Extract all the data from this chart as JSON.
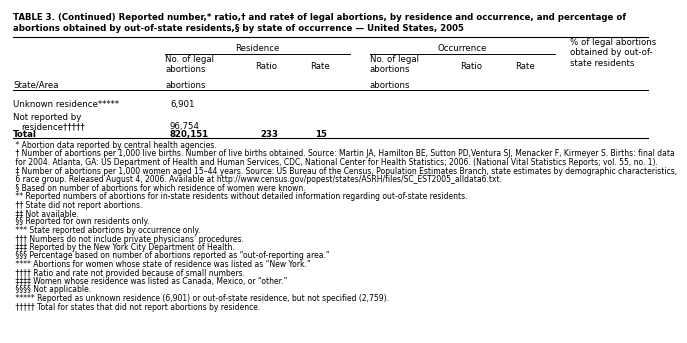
{
  "title_line1": "TABLE 3. (Continued) Reported number,* ratio,† and rate‡ of legal abortions, by residence and occurrence, and percentage of",
  "title_line2": "abortions obtained by out-of-state residents,§ by state of occurrence — United States, 2005",
  "footnotes": [
    " * Abortion data reported by central health agencies.",
    " † Number of abortions per 1,000 live births. Number of live births obtained. Source: Martin JA, Hamilton BE, Sutton PD,Ventura SJ, Menacker F, Kirmeyer S. Births: final data",
    " for 2004. Atlanta, GA: US Department of Health and Human Services, CDC, National Center for Health Statistics; 2006. (National Vital Statistics Reports; vol. 55, no. 1).",
    " ‡ Number of abortions per 1,000 women aged 15–44 years. Source: US Bureau of the Census, Population Estimates Branch, state estimates by demographic characteristics,",
    " 6 race group. Released August 4, 2006. Available at http://www.census.gov/popest/states/ASRH/files/SC_EST2005_alldata6.txt.",
    " § Based on number of abortions for which residence of women were known.",
    " ** Reported numbers of abortions for in-state residents without detailed information regarding out-of-state residents.",
    " †† State did not report abortions.",
    " ‡‡ Not available.",
    " §§ Reported for own residents only.",
    " *** State reported abortions by occurrence only.",
    " ††† Numbers do not include private physicians’ procedures.",
    " ‡‡‡ Reported by the New York City Department of Health.",
    " §§§ Percentage based on number of abortions reported as “out-of-reporting area.”",
    " **** Abortions for women whose state of residence was listed as “New York.”",
    " †††† Ratio and rate not provided because of small numbers.",
    " ‡‡‡‡ Women whose residence was listed as Canada, Mexico, or “other.”",
    " §§§§ Not applicable.",
    " ***** Reported as unknown residence (6,901) or out-of-state residence, but not specified (2,759).",
    " ††††† Total for states that did not report abortions by residence."
  ],
  "bg_color": "#ffffff",
  "text_color": "#000000"
}
